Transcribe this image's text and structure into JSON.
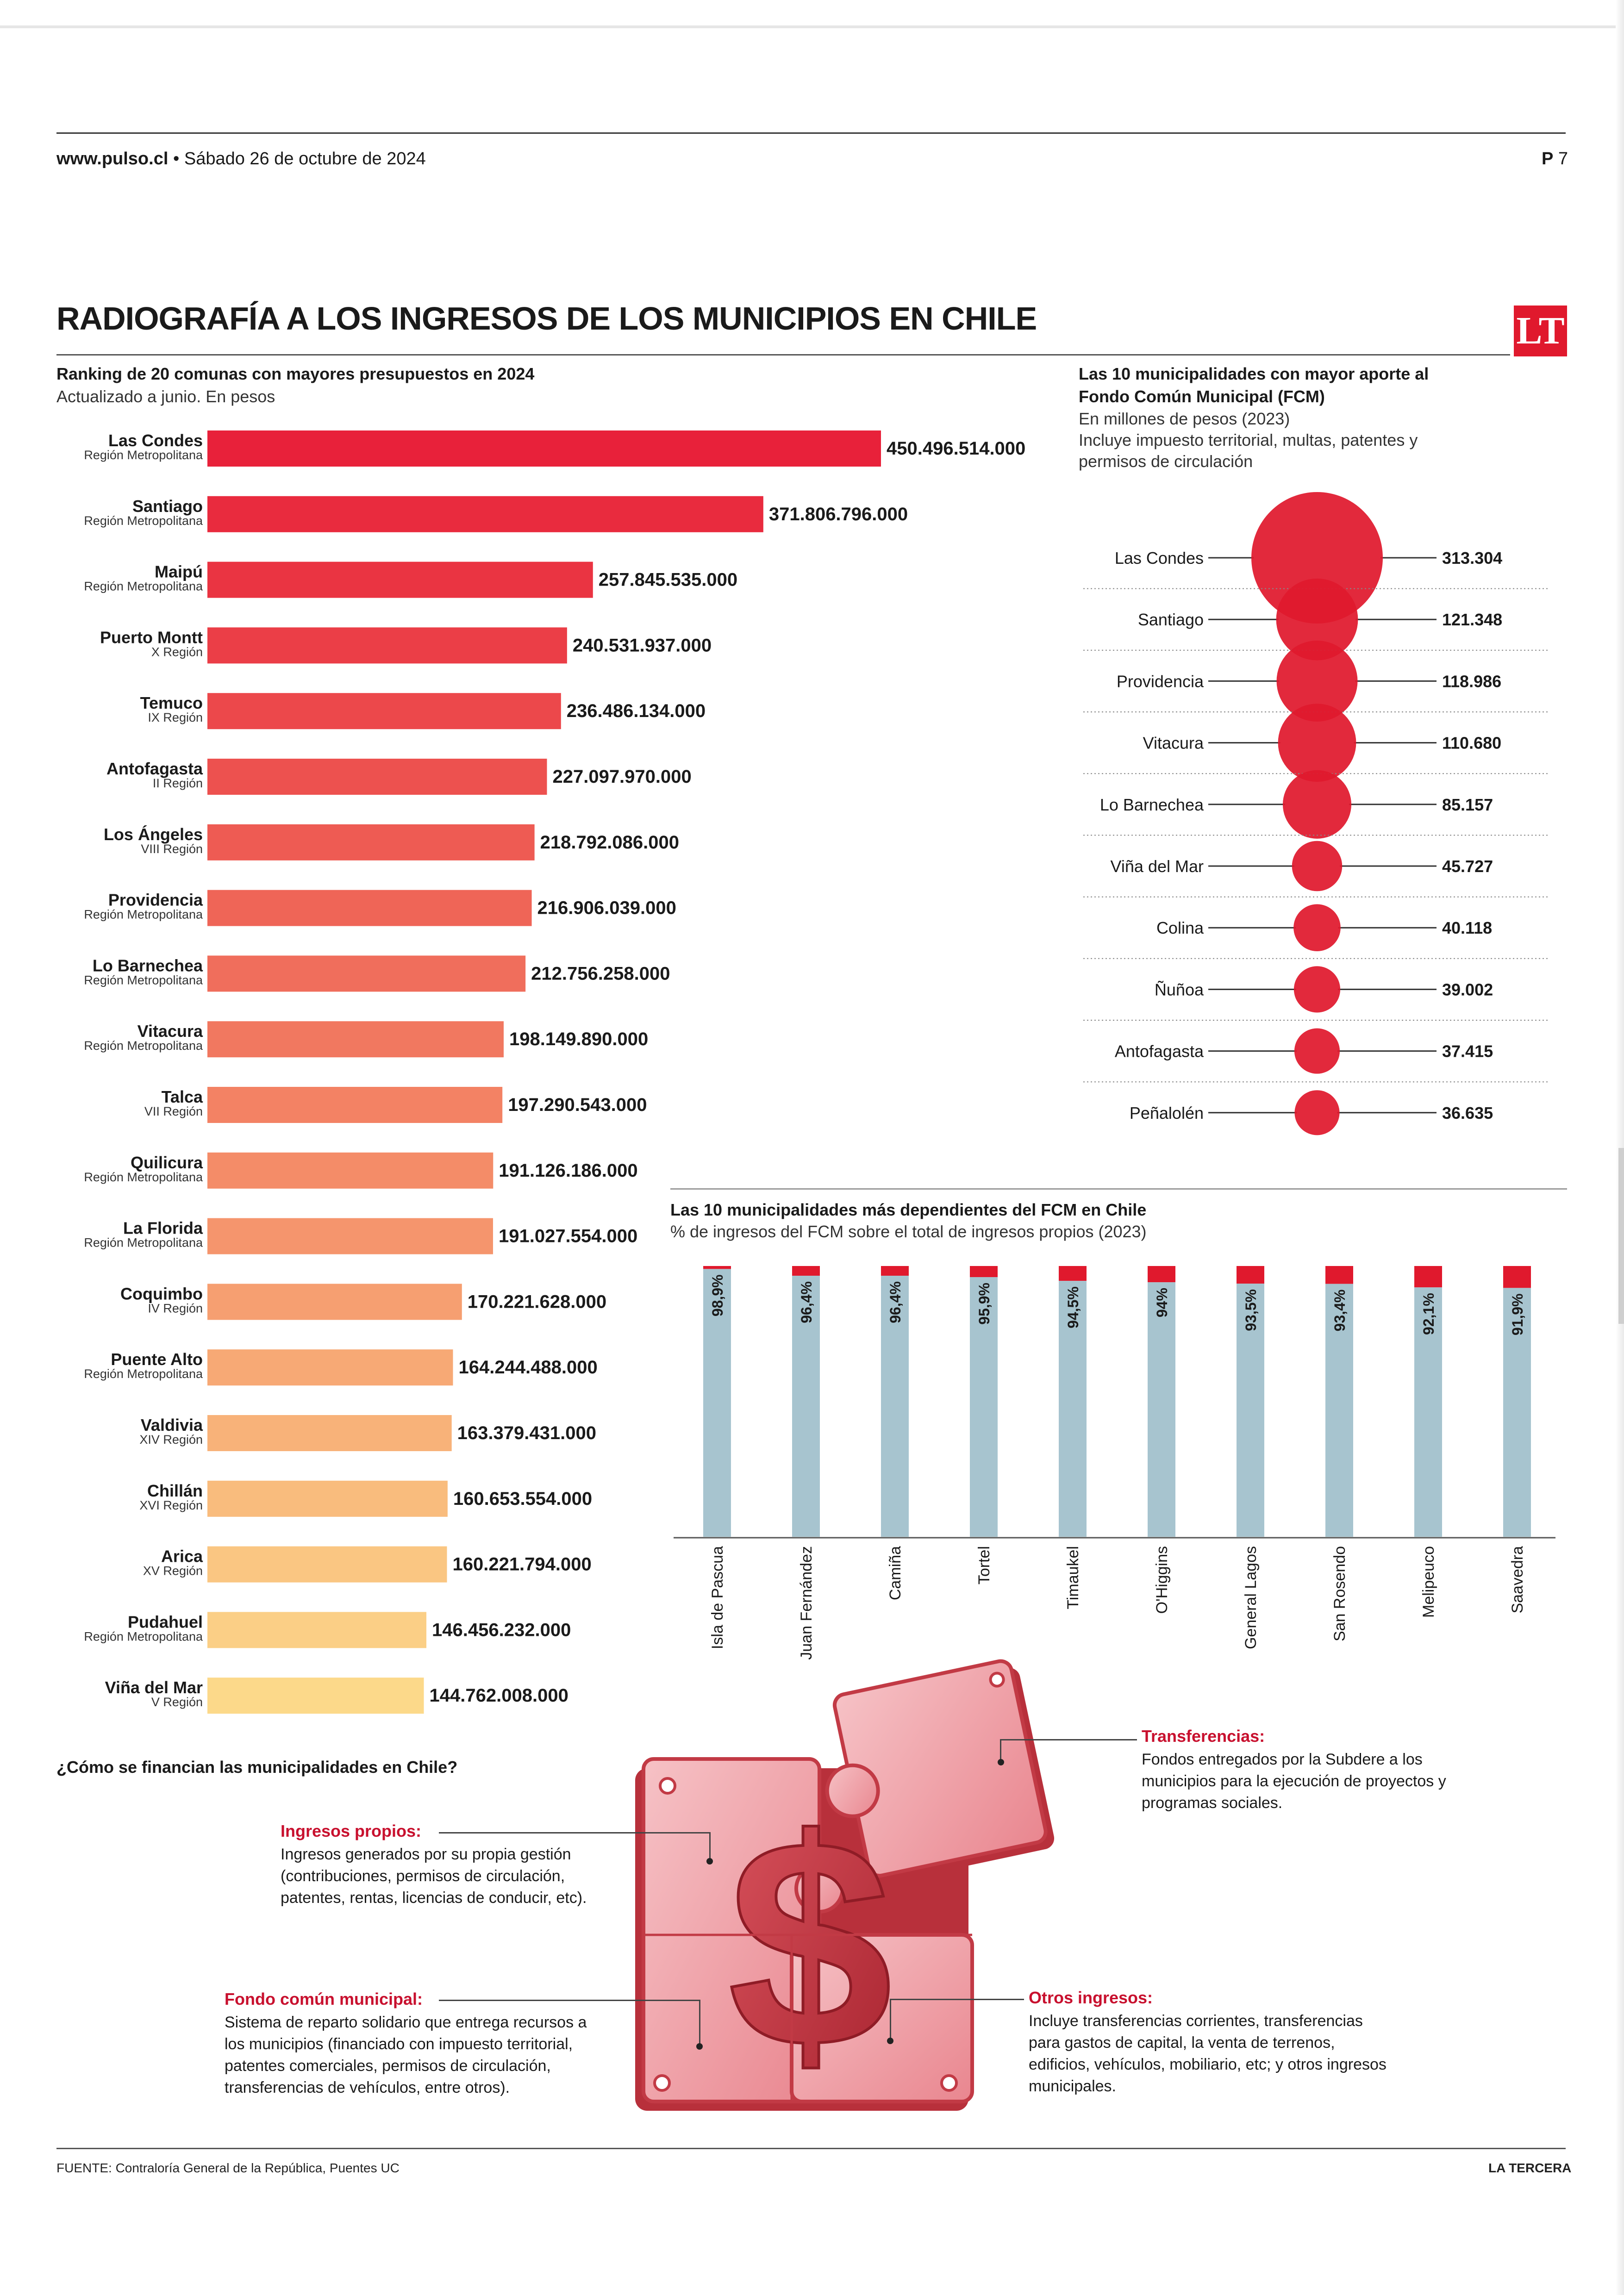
{
  "header": {
    "site": "www.pulso.cl",
    "date": "Sábado 26 de octubre de 2024",
    "page_letter": "P",
    "page_number": "7"
  },
  "title": "RADIOGRAFÍA A LOS INGRESOS DE LOS MUNICIPIOS EN CHILE",
  "logo": "LT",
  "chart_data": [
    {
      "type": "bar",
      "orientation": "horizontal",
      "title": "Ranking de 20 comunas con mayores presupuestos en 2024",
      "subtitle": "Actualizado a junio. En pesos",
      "color_gradient": [
        "#e8213a",
        "#fcd98a"
      ],
      "categories": [
        "Las Condes",
        "Santiago",
        "Maipú",
        "Puerto Montt",
        "Temuco",
        "Antofagasta",
        "Los Ángeles",
        "Providencia",
        "Lo Barnechea",
        "Vitacura",
        "Talca",
        "Quilicura",
        "La Florida",
        "Coquimbo",
        "Puente Alto",
        "Valdivia",
        "Chillán",
        "Arica",
        "Pudahuel",
        "Viña del Mar"
      ],
      "regions": [
        "Región Metropolitana",
        "Región Metropolitana",
        "Región Metropolitana",
        "X Región",
        "IX Región",
        "II Región",
        "VIII Región",
        "Región Metropolitana",
        "Región Metropolitana",
        "Región Metropolitana",
        "VII Región",
        "Región Metropolitana",
        "Región Metropolitana",
        "IV Región",
        "Región Metropolitana",
        "XIV Región",
        "XVI Región",
        "XV Región",
        "Región Metropolitana",
        "V Región"
      ],
      "values": [
        450496514000,
        371806796000,
        257845535000,
        240531937000,
        236486134000,
        227097970000,
        218792086000,
        216906039000,
        212756258000,
        198149890000,
        197290543000,
        191126186000,
        191027554000,
        170221628000,
        164244488000,
        163379431000,
        160653554000,
        160221794000,
        146456232000,
        144762008000
      ],
      "value_labels": [
        "450.496.514.000",
        "371.806.796.000",
        "257.845.535.000",
        "240.531.937.000",
        "236.486.134.000",
        "227.097.970.000",
        "218.792.086.000",
        "216.906.039.000",
        "212.756.258.000",
        "198.149.890.000",
        "197.290.543.000",
        "191.126.186.000",
        "191.027.554.000",
        "170.221.628.000",
        "164.244.488.000",
        "163.379.431.000",
        "160.653.554.000",
        "160.221.794.000",
        "146.456.232.000",
        "144.762.008.000"
      ]
    },
    {
      "type": "bubble",
      "title_lines": [
        "Las 10 municipalidades con mayor aporte al",
        "Fondo Común Municipal (FCM)"
      ],
      "subtitle_lines": [
        "En millones de pesos (2023)",
        "Incluye impuesto territorial, multas, patentes y",
        "permisos de circulación"
      ],
      "color": "#e0192d",
      "categories": [
        "Las Condes",
        "Santiago",
        "Providencia",
        "Vitacura",
        "Lo Barnechea",
        "Viña del Mar",
        "Colina",
        "Ñuñoa",
        "Antofagasta",
        "Peñalolén"
      ],
      "values": [
        313304,
        121348,
        118986,
        110680,
        85157,
        45727,
        40118,
        39002,
        37415,
        36635
      ],
      "value_labels": [
        "313.304",
        "121.348",
        "118.986",
        "110.680",
        "85.157",
        "45.727",
        "40.118",
        "39.002",
        "37.415",
        "36.635"
      ]
    },
    {
      "type": "bar",
      "orientation": "vertical",
      "stacked": true,
      "title": "Las 10 municipalidades más dependientes del FCM en Chile",
      "subtitle": "% de ingresos del FCM sobre el total de ingresos propios (2023)",
      "colors": {
        "fcm": "#a7c4cf",
        "rest": "#e0192d"
      },
      "categories": [
        "Isla de Pascua",
        "Juan Fernández",
        "Camiña",
        "Tortel",
        "Timaukel",
        "O'Higgins",
        "General Lagos",
        "San Rosendo",
        "Melipeuco",
        "Saavedra"
      ],
      "values": [
        98.9,
        96.4,
        96.4,
        95.9,
        94.5,
        94,
        93.5,
        93.4,
        92.1,
        91.9
      ],
      "value_labels": [
        "98,9%",
        "96,4%",
        "96,4%",
        "95,9%",
        "94,5%",
        "94%",
        "93,5%",
        "93,4%",
        "92,1%",
        "91,9%"
      ],
      "ylim": [
        0,
        100
      ]
    }
  ],
  "financing": {
    "question": "¿Cómo se financian las municipalidades en Chile?",
    "transferencias": {
      "title": "Transferencias:",
      "lines": [
        "Fondos entregados por la Subdere a los",
        "municipios para la ejecución de proyectos y",
        "programas sociales."
      ]
    },
    "ingresos_propios": {
      "title": "Ingresos propios:",
      "lines": [
        "Ingresos generados por su propia gestión",
        "(contribuciones, permisos de circulación,",
        "patentes, rentas, licencias de conducir, etc)."
      ]
    },
    "fondo_comun": {
      "title": "Fondo común municipal:",
      "lines": [
        "Sistema de reparto solidario que entrega recursos a",
        "los municipios (financiado con impuesto territorial,",
        "patentes comerciales, permisos de circulación,",
        "transferencias de vehículos, entre otros)."
      ]
    },
    "otros_ingresos": {
      "title": "Otros ingresos:",
      "lines": [
        "Incluye transferencias corrientes, transferencias",
        "para gastos de capital, la venta de terrenos,",
        "edificios, vehículos, mobiliario, etc; y otros ingresos",
        "municipales."
      ]
    },
    "symbol": "$"
  },
  "footer": {
    "source_label": "FUENTE:",
    "source": "Contraloría General de la República, Puentes UC",
    "brand": "LA TERCERA"
  }
}
